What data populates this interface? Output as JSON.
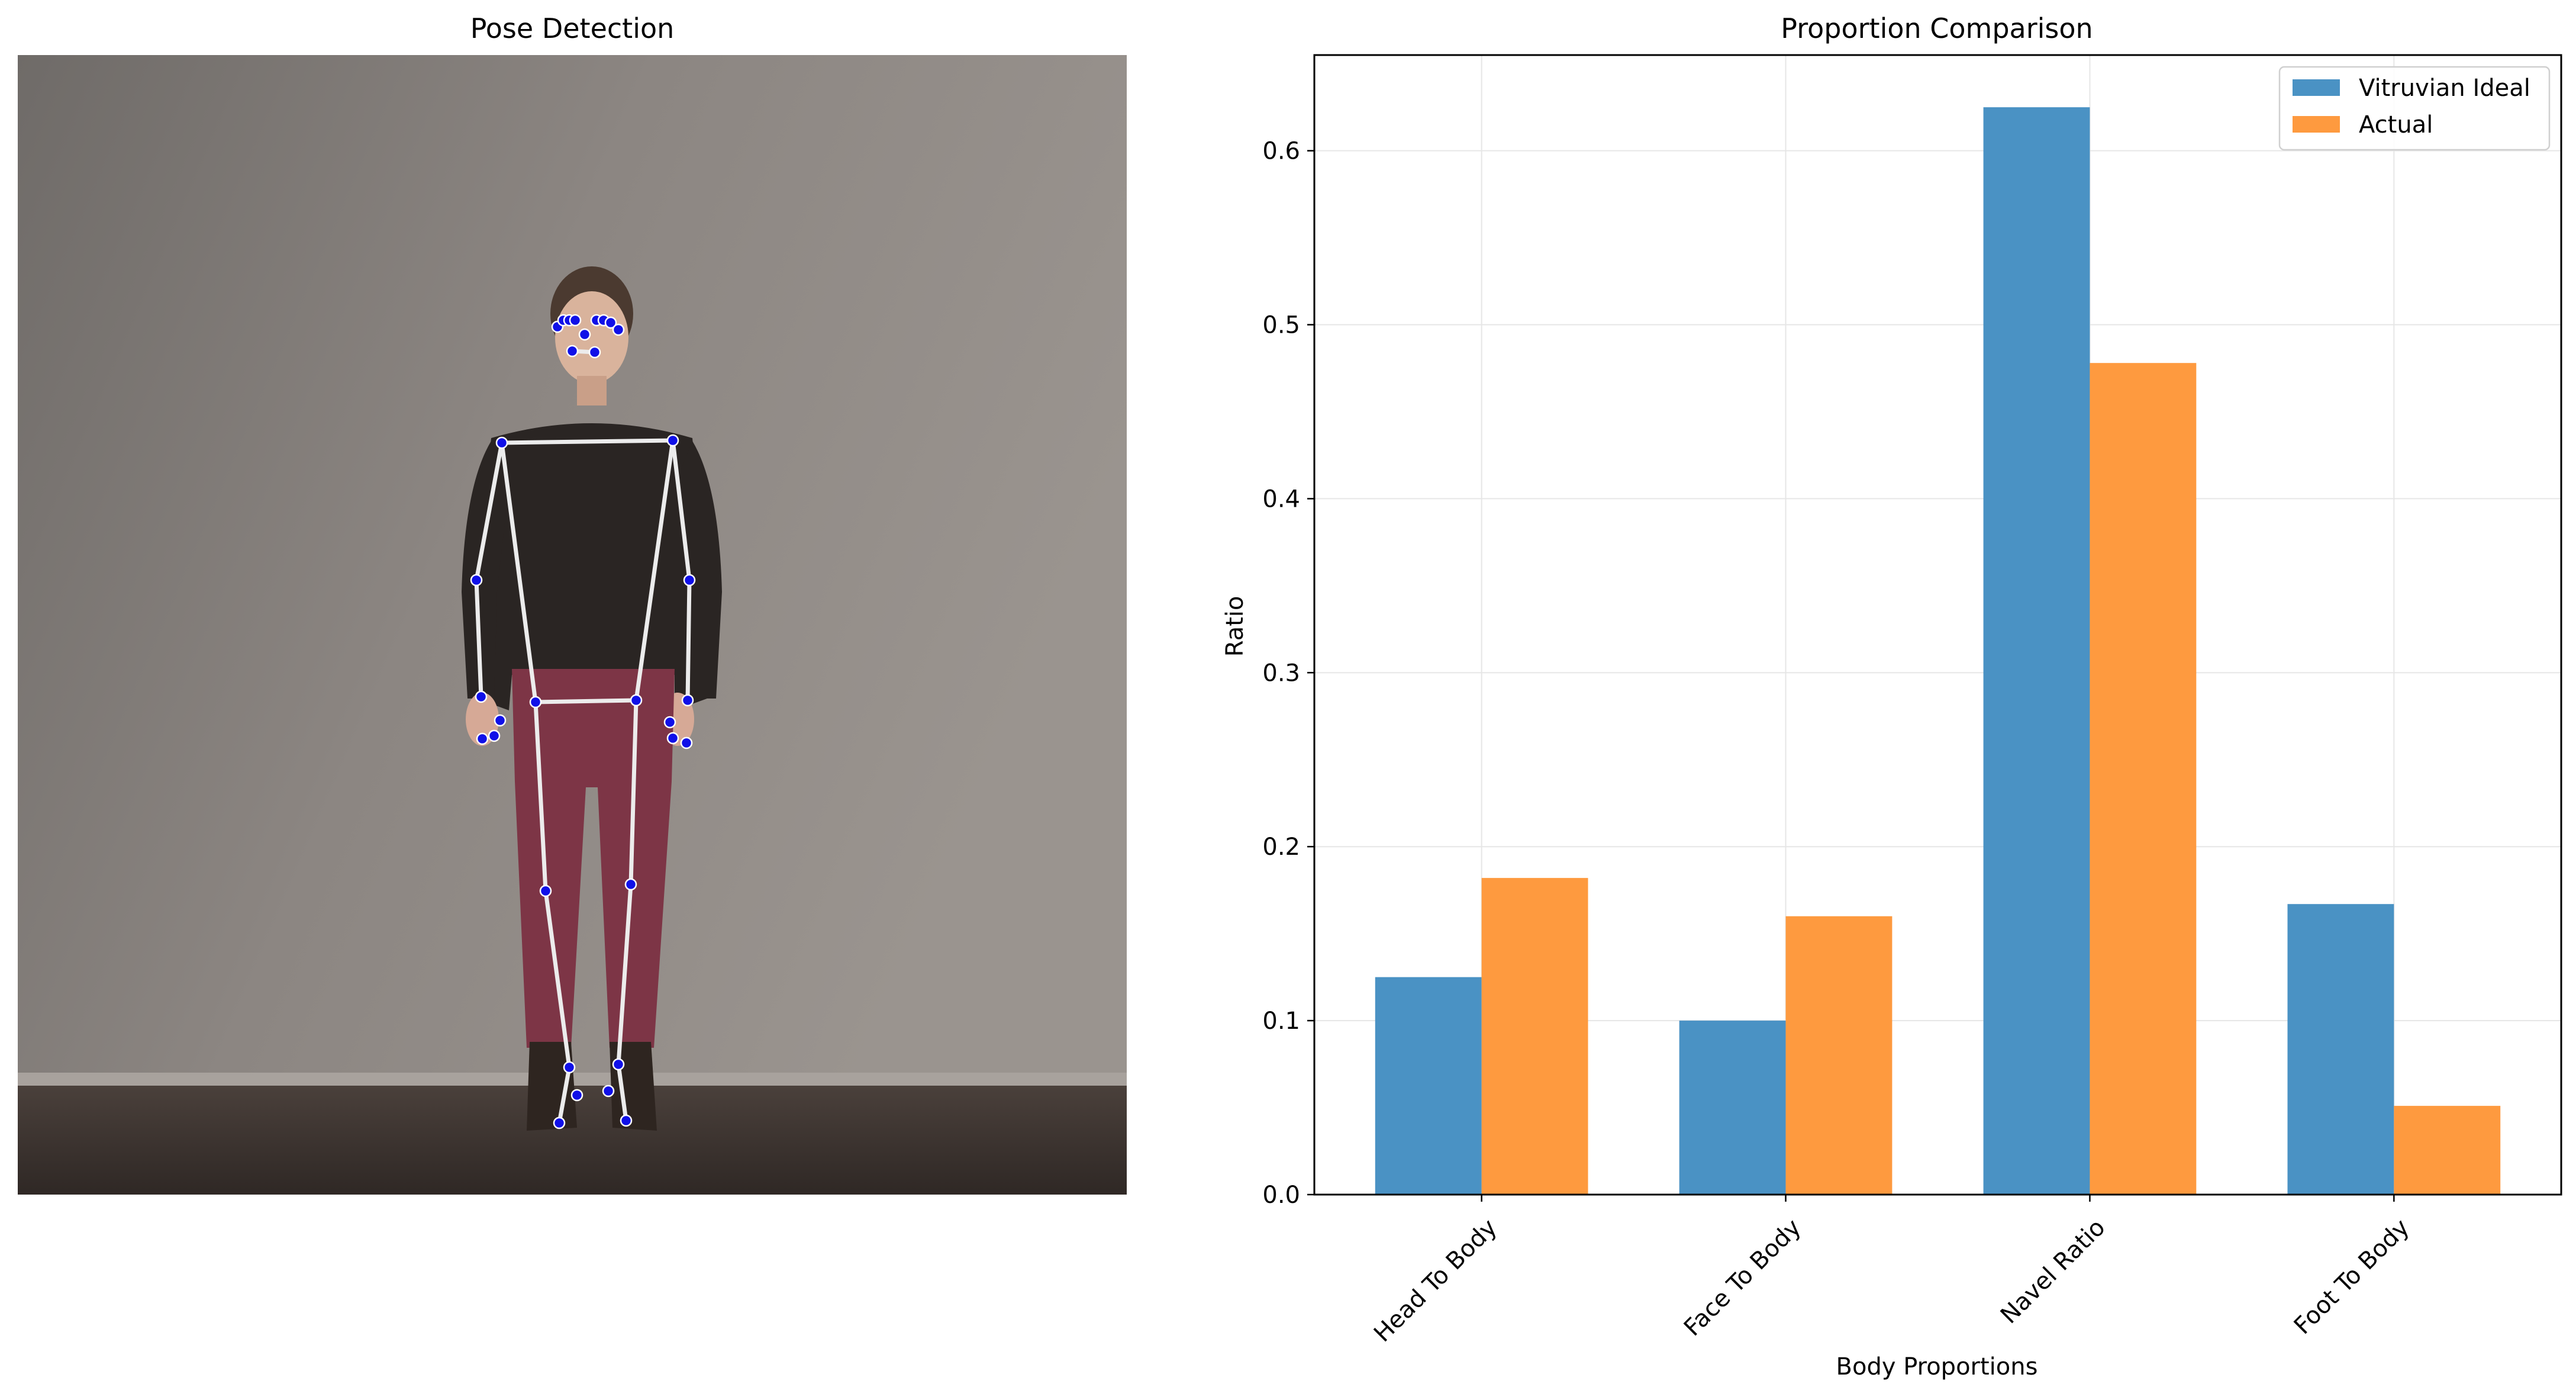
{
  "panels": {
    "left_title": "Pose Detection",
    "right_title": "Proportion Comparison"
  },
  "colors": {
    "ideal": "#4a92c4",
    "actual": "#fe9a3f",
    "grid": "#e6e6e6",
    "skeleton": "#ececec",
    "landmark": "#1010e8"
  },
  "photo": {
    "subject": "standing person",
    "icon": "pose-skeleton-overlay"
  },
  "chart_data": {
    "type": "bar",
    "title": "Proportion Comparison",
    "xlabel": "Body Proportions",
    "ylabel": "Ratio",
    "categories": [
      "Head To Body",
      "Face To Body",
      "Navel Ratio",
      "Foot To Body"
    ],
    "series": [
      {
        "name": "Vitruvian Ideal",
        "values": [
          0.125,
          0.1,
          0.625,
          0.167
        ]
      },
      {
        "name": "Actual",
        "values": [
          0.182,
          0.16,
          0.478,
          0.051
        ]
      }
    ],
    "ylim": [
      0,
      0.655
    ],
    "yticks": [
      "0.0",
      "0.1",
      "0.2",
      "0.3",
      "0.4",
      "0.5",
      "0.6"
    ],
    "grid": true,
    "legend_position": "top-right"
  }
}
